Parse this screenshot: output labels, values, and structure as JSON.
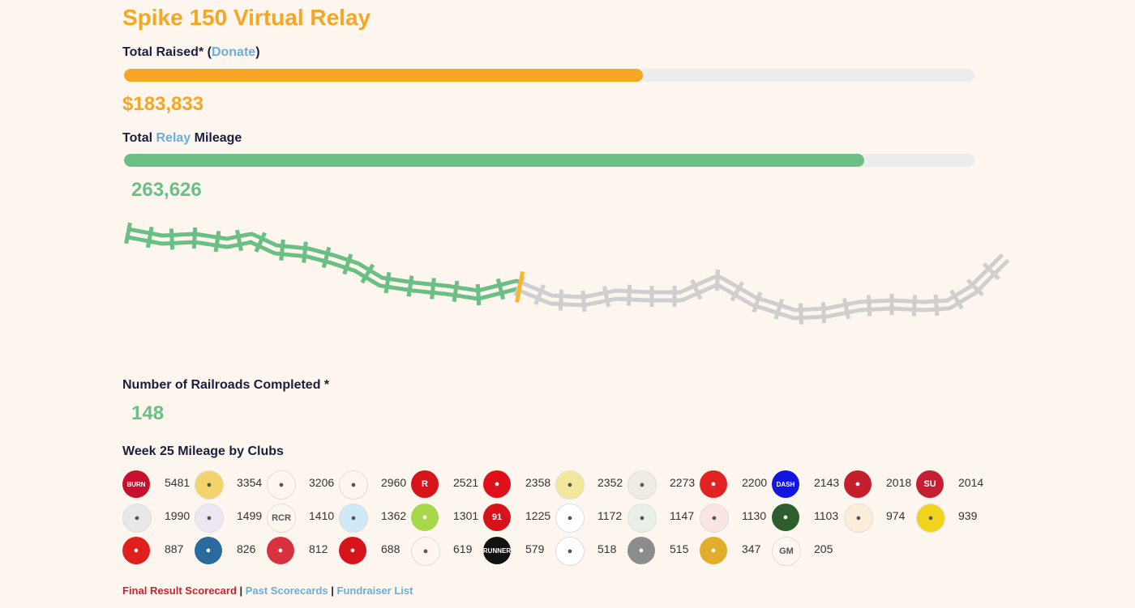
{
  "title": "Spike 150 Virtual Relay",
  "raised": {
    "label": "Total Raised*",
    "paren_open": " (",
    "donate_link": "Donate",
    "paren_close": ")",
    "value": "$183,833",
    "progress": 0.61,
    "color": "#f5a623"
  },
  "mileage": {
    "label_pre": "Total ",
    "relay_link": "Relay",
    "label_post": " Mileage",
    "value": "263,626",
    "progress": 0.87,
    "color": "#6cbf84"
  },
  "track": {
    "progress": 0.44,
    "done_color": "#6cbf84",
    "todo_color": "#cfcfcf",
    "marker_color": "#f5b72e"
  },
  "railroads": {
    "label": "Number of Railroads Completed *",
    "value": "148"
  },
  "clubs": {
    "heading": "Week 25 Mileage by Clubs",
    "items": [
      {
        "value": "5481",
        "color": "#c8102e",
        "icon": "BURN"
      },
      {
        "value": "3354",
        "color": "#f3d36a",
        "icon": "bird-icon"
      },
      {
        "value": "3206",
        "color": "#fdf6ee",
        "icon": "brush-icon"
      },
      {
        "value": "2960",
        "color": "#fdf6ee",
        "icon": "runner-icon"
      },
      {
        "value": "2521",
        "color": "#d7141a",
        "icon": "R"
      },
      {
        "value": "2358",
        "color": "#e0101a",
        "icon": "glyph-icon"
      },
      {
        "value": "2352",
        "color": "#f2e79a",
        "icon": "badge-icon"
      },
      {
        "value": "2273",
        "color": "#f0ece4",
        "icon": "sprinter-icon"
      },
      {
        "value": "2200",
        "color": "#e22323",
        "icon": "cross-icon"
      },
      {
        "value": "2143",
        "color": "#1414e0",
        "icon": "DASH"
      },
      {
        "value": "2018",
        "color": "#c51f2e",
        "icon": "stripe-icon"
      },
      {
        "value": "2014",
        "color": "#c41f32",
        "icon": "SU"
      },
      {
        "value": "1990",
        "color": "#e8e8e8",
        "icon": "seal-icon"
      },
      {
        "value": "1499",
        "color": "#efe6f3",
        "icon": "crest-icon"
      },
      {
        "value": "1410",
        "color": "#fdf6ee",
        "icon": "RCR"
      },
      {
        "value": "1362",
        "color": "#cfe8f5",
        "icon": "pair-icon"
      },
      {
        "value": "1301",
        "color": "#a6d84a",
        "icon": "grass-icon"
      },
      {
        "value": "1225",
        "color": "#d6121a",
        "icon": "91"
      },
      {
        "value": "1172",
        "color": "#ffffff",
        "icon": "circle-text-icon"
      },
      {
        "value": "1147",
        "color": "#e9f0e8",
        "icon": "flag-icon"
      },
      {
        "value": "1130",
        "color": "#fbe4e4",
        "icon": "stamp-icon"
      },
      {
        "value": "1103",
        "color": "#2e5e2e",
        "icon": "photo-icon"
      },
      {
        "value": "974",
        "color": "#fbeed8",
        "icon": "ring-icon"
      },
      {
        "value": "939",
        "color": "#f3d41c",
        "icon": "yolo-icon"
      },
      {
        "value": "887",
        "color": "#e0201c",
        "icon": "flame-icon"
      },
      {
        "value": "826",
        "color": "#2a6a9e",
        "icon": "wings-icon"
      },
      {
        "value": "812",
        "color": "#d8323e",
        "icon": "swirl-icon"
      },
      {
        "value": "688",
        "color": "#d7141a",
        "icon": "shield-icon"
      },
      {
        "value": "619",
        "color": "#fdf6ee",
        "icon": "script-icon"
      },
      {
        "value": "579",
        "color": "#111111",
        "icon": "RUNNER"
      },
      {
        "value": "518",
        "color": "#ffffff",
        "icon": "torch-icon"
      },
      {
        "value": "515",
        "color": "#8c8c8c",
        "icon": "group-icon"
      },
      {
        "value": "347",
        "color": "#e2ad2a",
        "icon": "beast-icon"
      },
      {
        "value": "205",
        "color": "#fdf6ee",
        "icon": "GM"
      }
    ]
  },
  "footer": {
    "final": "Final Result Scorecard",
    "sep1": " | ",
    "past": "Past Scorecards",
    "sep2": " | ",
    "fundraiser": "Fundraiser List"
  }
}
